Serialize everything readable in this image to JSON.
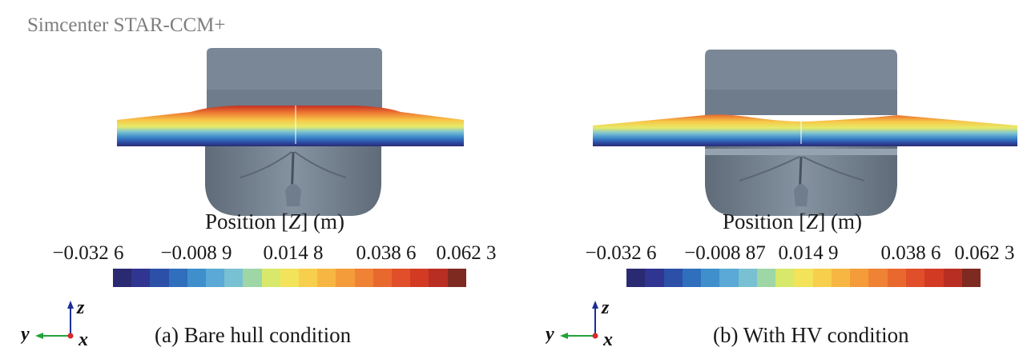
{
  "watermark": "Simcenter STAR-CCM+",
  "colormap": [
    "#2a2a72",
    "#2f3590",
    "#2c50a8",
    "#2f6fbc",
    "#3f8fcd",
    "#5aa9d6",
    "#79c0d2",
    "#9ed6a6",
    "#d7e86a",
    "#f2e35b",
    "#f7cf4d",
    "#f7b642",
    "#f49c3a",
    "#ef8234",
    "#e9682e",
    "#e04f29",
    "#d33a24",
    "#b92e22",
    "#7e2a20"
  ],
  "axes_triad": {
    "z": "z",
    "y": "y",
    "x": "x"
  },
  "panels": [
    {
      "colorbar_title": {
        "pre": "Position [",
        "var": "Z",
        "post": "] (m)"
      },
      "ticks": [
        "−0.032 6",
        "−0.008 9",
        "0.014 8",
        "0.038 6",
        "0.062 3"
      ],
      "caption": "(a) Bare hull condition"
    },
    {
      "colorbar_title": {
        "pre": "Position [",
        "var": "Z",
        "post": "] (m)"
      },
      "ticks": [
        "−0.032 6",
        "−0.008 87",
        "0.014 9",
        "0.038 6",
        "0.062 3"
      ],
      "caption": "(b) With HV condition"
    }
  ]
}
